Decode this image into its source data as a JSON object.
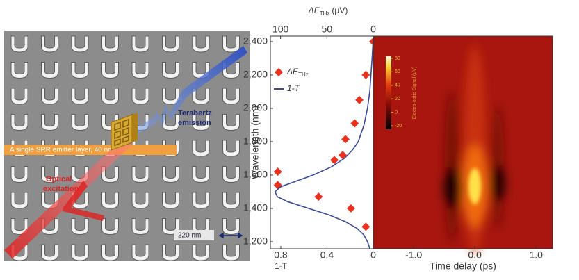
{
  "illustration": {
    "banner": "A single SRR emitter layer, 40 nm",
    "emission": [
      "Terahertz",
      "emission"
    ],
    "excitation": [
      "Optical",
      "excitation"
    ],
    "scale": "220 nm"
  },
  "chart_data": [
    {
      "type": "line",
      "ylabel": "Wavelength (nm)",
      "xlabel": "1-T",
      "x2label": {
        "main": "ΔE",
        "sub": "THz",
        "unit": "(μV)"
      },
      "ylim": [
        1158,
        2433
      ],
      "yticks": [
        {
          "value": 1200,
          "label": "1,200"
        },
        {
          "value": 1400,
          "label": "1,400"
        },
        {
          "value": 1600,
          "label": "1,600"
        },
        {
          "value": 1800,
          "label": "1,800"
        },
        {
          "value": 2000,
          "label": "2,000"
        },
        {
          "value": 2200,
          "label": "2,200"
        },
        {
          "value": 2400,
          "label": "2,400"
        }
      ],
      "xlim": [
        0.89,
        0.0
      ],
      "xticks": [
        0.8,
        0.4,
        0.0
      ],
      "x2lim": [
        111,
        0
      ],
      "x2ticks": [
        100,
        50,
        0
      ],
      "series": [
        {
          "name": "ΔE",
          "name_sub": "THz",
          "axis": "x2",
          "marker": "diamond",
          "color": "#e8321f",
          "wavelengths": [
            2400,
            2200,
            2050,
            1910,
            1815,
            1720,
            1690,
            1620,
            1540,
            1470,
            1400,
            1290
          ],
          "values": [
            0,
            8,
            15,
            20,
            30,
            33,
            42,
            103,
            103,
            59,
            24,
            8
          ]
        },
        {
          "name": "1-T",
          "marker": "line",
          "color": "#3a4a9a",
          "wavelengths": [
            2420,
            2300,
            2200,
            2100,
            2000,
            1900,
            1800,
            1750,
            1700,
            1650,
            1600,
            1560,
            1530,
            1500,
            1470,
            1440,
            1400,
            1360,
            1320,
            1280,
            1240,
            1200,
            1160
          ],
          "values": [
            0,
            0.01,
            0.02,
            0.03,
            0.05,
            0.08,
            0.13,
            0.18,
            0.25,
            0.36,
            0.52,
            0.68,
            0.8,
            0.85,
            0.83,
            0.74,
            0.56,
            0.38,
            0.24,
            0.14,
            0.08,
            0.05,
            0.03
          ]
        }
      ]
    },
    {
      "type": "heatmap",
      "xlabel": "Time delay (ps)",
      "xlim": [
        -1.66,
        1.27
      ],
      "xticks": [
        {
          "value": -1,
          "label": "-1.0"
        },
        {
          "value": 0,
          "label": "0.0"
        },
        {
          "value": 1,
          "label": "1.0"
        }
      ],
      "colorbar": {
        "label": "Electro-optic Signal (μV)",
        "lim": [
          -25,
          83
        ],
        "ticks": [
          -20,
          0,
          20,
          40,
          60,
          80
        ]
      }
    }
  ]
}
